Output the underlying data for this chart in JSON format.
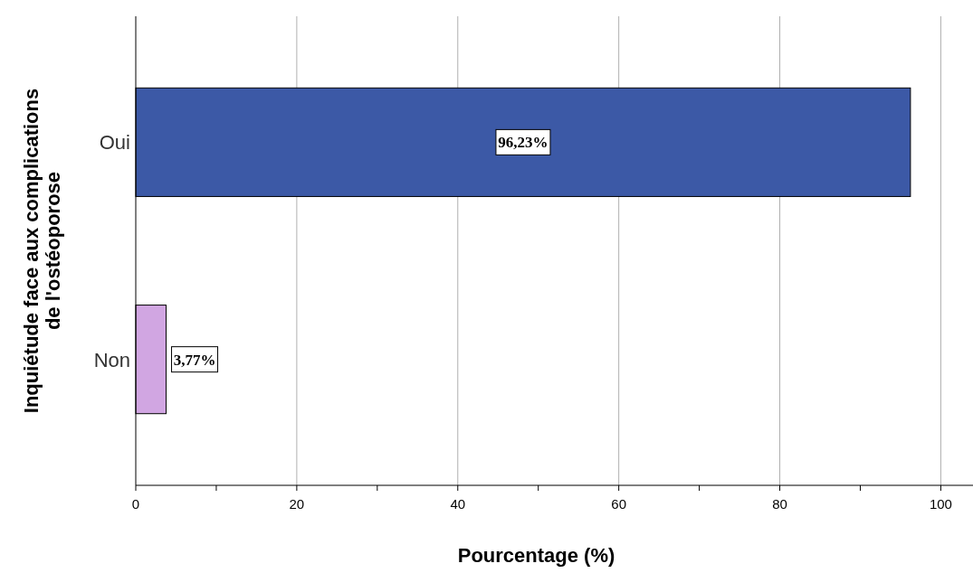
{
  "chart_data": {
    "type": "bar",
    "orientation": "horizontal",
    "categories": [
      "Oui",
      "Non"
    ],
    "values": [
      96.23,
      3.77
    ],
    "colors": [
      "#3c59a6",
      "#d1a6e2"
    ],
    "value_labels": [
      "96,23%",
      "3,77%"
    ],
    "xlabel": "Pourcentage (%)",
    "ylabel": "Inquiétude face aux complications\nde l'ostéoporose",
    "xlim": [
      0,
      104
    ],
    "xticks": [
      0,
      {
        "value": 10,
        "label": null
      },
      20,
      {
        "value": 30,
        "label": null
      },
      40,
      {
        "value": 50,
        "label": null
      },
      60,
      {
        "value": 70,
        "label": null
      },
      80,
      {
        "value": 90,
        "label": null
      },
      100
    ],
    "grid": "x"
  }
}
